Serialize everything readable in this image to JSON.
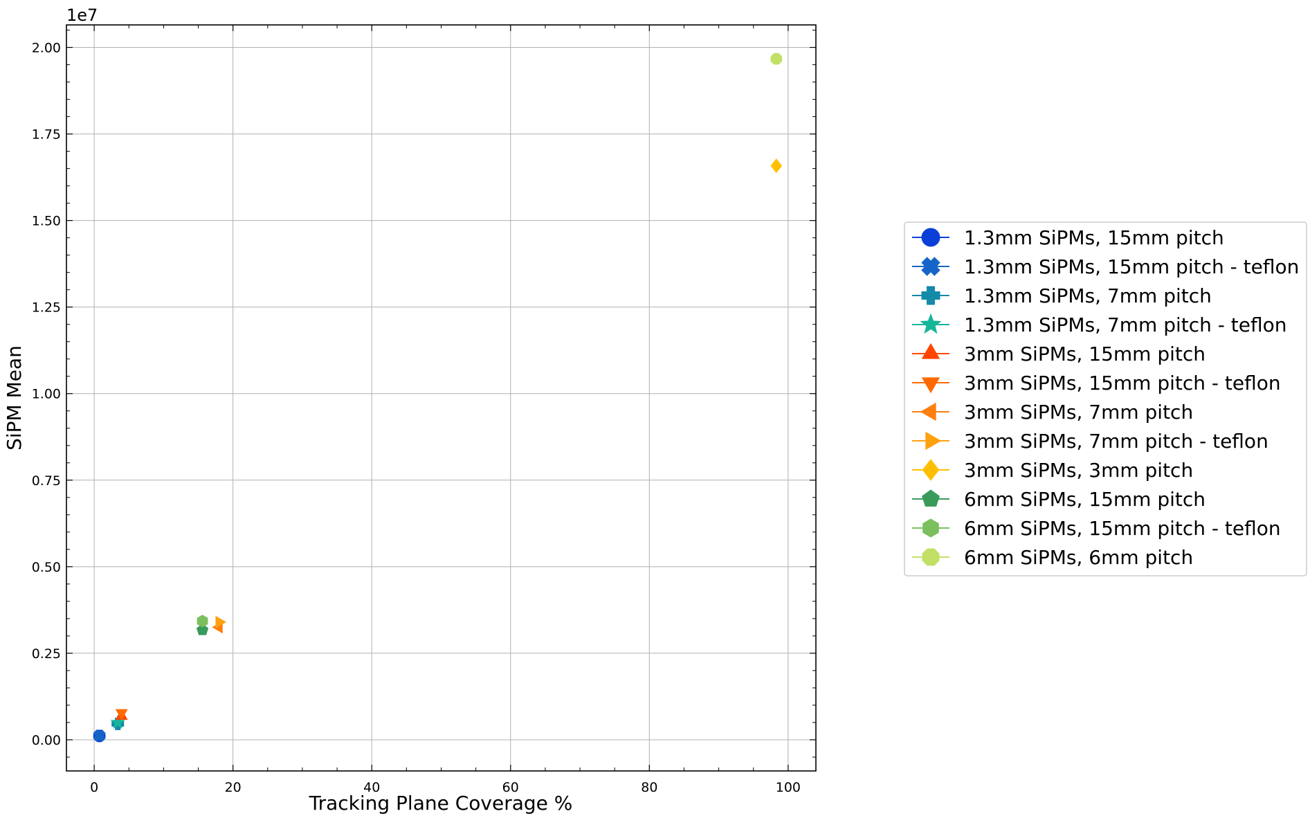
{
  "chart_data": {
    "type": "scatter",
    "xlabel": "Tracking Plane Coverage %",
    "ylabel": "SiPM Mean",
    "y_offset_label": "1e7",
    "xlim": [
      -4,
      104
    ],
    "ylim": [
      -0.09,
      2.065
    ],
    "x_ticks": [
      0,
      20,
      40,
      60,
      80,
      100
    ],
    "x_tick_labels": [
      "0",
      "20",
      "40",
      "60",
      "80",
      "100"
    ],
    "y_ticks": [
      0.0,
      0.25,
      0.5,
      0.75,
      1.0,
      1.25,
      1.5,
      1.75,
      2.0
    ],
    "y_tick_labels": [
      "0.00",
      "0.25",
      "0.50",
      "0.75",
      "1.00",
      "1.25",
      "1.50",
      "1.75",
      "2.00"
    ],
    "grid": true,
    "legend_position": "right",
    "series": [
      {
        "name": "1.3mm SiPMs, 15mm pitch",
        "marker": "circle",
        "color": "#0a3fd8",
        "x": [
          0.75
        ],
        "y": [
          0.011
        ]
      },
      {
        "name": "1.3mm SiPMs, 15mm pitch - teflon",
        "marker": "x-filled",
        "color": "#1565c8",
        "x": [
          0.75
        ],
        "y": [
          0.012
        ]
      },
      {
        "name": "1.3mm SiPMs, 7mm pitch",
        "marker": "plus-filled",
        "color": "#128aa8",
        "x": [
          3.4
        ],
        "y": [
          0.046
        ]
      },
      {
        "name": "1.3mm SiPMs, 7mm pitch - teflon",
        "marker": "star",
        "color": "#15b59a",
        "x": [
          3.4
        ],
        "y": [
          0.05
        ]
      },
      {
        "name": "3mm SiPMs, 15mm pitch",
        "marker": "triangle-up",
        "color": "#ff4500",
        "x": [
          3.95
        ],
        "y": [
          0.068
        ]
      },
      {
        "name": "3mm SiPMs, 15mm pitch - teflon",
        "marker": "triangle-down",
        "color": "#ff6a00",
        "x": [
          3.95
        ],
        "y": [
          0.078
        ]
      },
      {
        "name": "3mm SiPMs, 7mm pitch",
        "marker": "triangle-left",
        "color": "#ff7f0e",
        "x": [
          18.0
        ],
        "y": [
          0.325
        ]
      },
      {
        "name": "3mm SiPMs, 7mm pitch - teflon",
        "marker": "triangle-right",
        "color": "#ffa010",
        "x": [
          18.0
        ],
        "y": [
          0.34
        ]
      },
      {
        "name": "3mm SiPMs, 3mm pitch",
        "marker": "diamond",
        "color": "#ffbf00",
        "x": [
          98.3
        ],
        "y": [
          1.658
        ]
      },
      {
        "name": "6mm SiPMs, 15mm pitch",
        "marker": "pentagon",
        "color": "#3a9a5c",
        "x": [
          15.6
        ],
        "y": [
          0.317
        ]
      },
      {
        "name": "6mm SiPMs, 15mm pitch - teflon",
        "marker": "hexagon",
        "color": "#7cbf5e",
        "x": [
          15.6
        ],
        "y": [
          0.343
        ]
      },
      {
        "name": "6mm SiPMs, 6mm pitch",
        "marker": "octagon",
        "color": "#c2e066",
        "x": [
          98.3
        ],
        "y": [
          1.967
        ]
      }
    ]
  }
}
